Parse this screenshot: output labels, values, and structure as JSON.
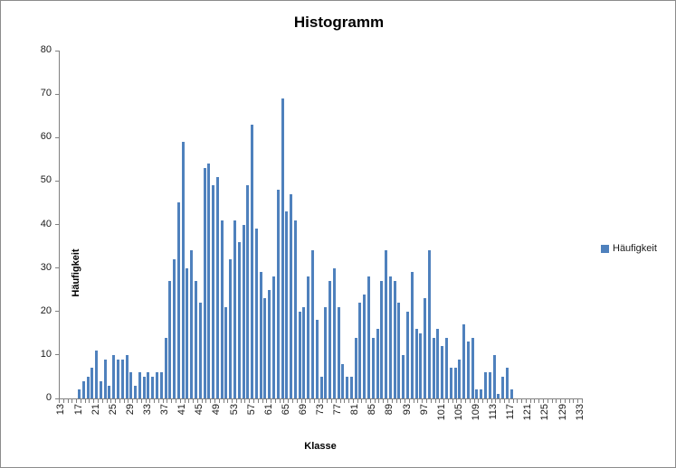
{
  "window": {
    "title": "Histogramm"
  },
  "colors": {
    "bar": "#4F81BD",
    "axis": "#808080",
    "frame_border": "#8c8c8c",
    "text": "#000000"
  },
  "legend": {
    "items": [
      {
        "label": "Häufigkeit",
        "swatch_color": "#4F81BD"
      }
    ],
    "position": "right"
  },
  "chart_data": {
    "type": "bar",
    "title": "Histogramm",
    "xlabel": "Klasse",
    "ylabel": "Häufigkeit",
    "legend": [
      "Häufigkeit"
    ],
    "ylim": [
      0,
      80
    ],
    "y_ticks": [
      0,
      10,
      20,
      30,
      40,
      50,
      60,
      70,
      80
    ],
    "grid": false,
    "categories_start": 13,
    "categories_end": 133,
    "x_tick_labels": [
      "13",
      "17",
      "21",
      "25",
      "29",
      "33",
      "37",
      "41",
      "45",
      "49",
      "53",
      "57",
      "61",
      "65",
      "69",
      "73",
      "77",
      "81",
      "85",
      "89",
      "93",
      "97",
      "101",
      "105",
      "109",
      "113",
      "117",
      "121",
      "125",
      "129",
      "133"
    ],
    "x_label_interval": 4,
    "bar_color": "#4F81BD",
    "values": [
      0,
      0,
      0,
      0,
      2,
      4,
      5,
      7,
      11,
      4,
      9,
      3,
      10,
      9,
      9,
      10,
      6,
      3,
      6,
      5,
      6,
      5,
      6,
      6,
      14,
      27,
      32,
      45,
      59,
      30,
      34,
      27,
      22,
      53,
      54,
      49,
      51,
      41,
      21,
      32,
      41,
      36,
      40,
      49,
      63,
      39,
      29,
      23,
      25,
      28,
      48,
      69,
      43,
      47,
      41,
      20,
      21,
      28,
      34,
      18,
      5,
      21,
      27,
      30,
      21,
      8,
      5,
      5,
      14,
      22,
      24,
      28,
      14,
      16,
      27,
      34,
      28,
      27,
      22,
      10,
      20,
      29,
      16,
      15,
      23,
      34,
      14,
      16,
      12,
      14,
      7,
      7,
      9,
      17,
      13,
      14,
      2,
      2,
      6,
      6,
      10,
      1,
      5,
      7,
      2,
      0,
      0,
      0,
      0,
      0,
      0,
      0,
      0,
      0,
      0,
      0,
      0,
      0,
      0,
      0,
      0
    ]
  }
}
